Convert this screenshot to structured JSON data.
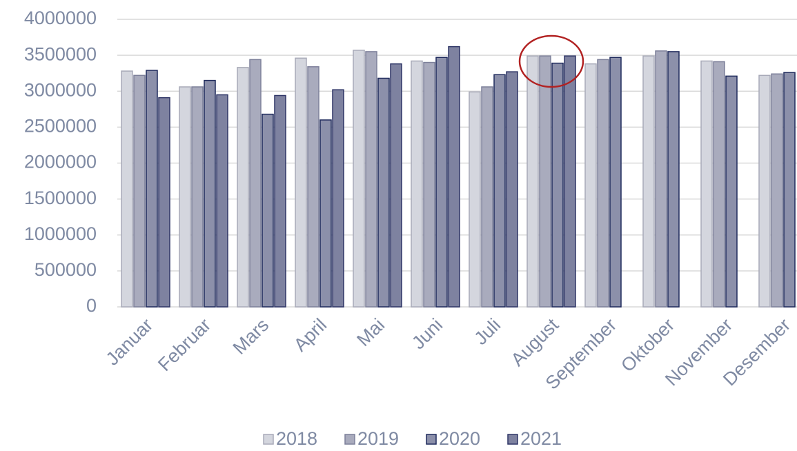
{
  "chart_data": {
    "type": "bar",
    "categories": [
      "Januar",
      "Februar",
      "Mars",
      "April",
      "Mai",
      "Juni",
      "Juli",
      "August",
      "September",
      "Oktober",
      "November",
      "Desember"
    ],
    "series": [
      {
        "name": "2018",
        "color": "#d4d6de",
        "values": [
          3280000,
          3060000,
          3330000,
          3460000,
          3570000,
          3420000,
          2990000,
          3490000,
          3380000,
          3490000,
          3420000,
          3220000
        ]
      },
      {
        "name": "2019",
        "color": "#a9abbd",
        "values": [
          3220000,
          3060000,
          3440000,
          3340000,
          3550000,
          3400000,
          3060000,
          3490000,
          3440000,
          3560000,
          3410000,
          3240000
        ]
      },
      {
        "name": "2020",
        "color": "#8c90aa",
        "values": [
          3290000,
          3150000,
          2680000,
          2600000,
          3180000,
          3470000,
          3230000,
          3390000,
          3470000,
          3550000,
          3210000,
          3260000
        ]
      },
      {
        "name": "2021",
        "color": "#7e82a0",
        "values": [
          2910000,
          2950000,
          2940000,
          3020000,
          3380000,
          3620000,
          3270000,
          3490000,
          null,
          null,
          null,
          null
        ]
      }
    ],
    "ylim": [
      0,
      4000000
    ],
    "yticks": [
      0,
      500000,
      1000000,
      1500000,
      2000000,
      2500000,
      3000000,
      3500000,
      4000000
    ],
    "grid": true,
    "legend": "bottom"
  }
}
